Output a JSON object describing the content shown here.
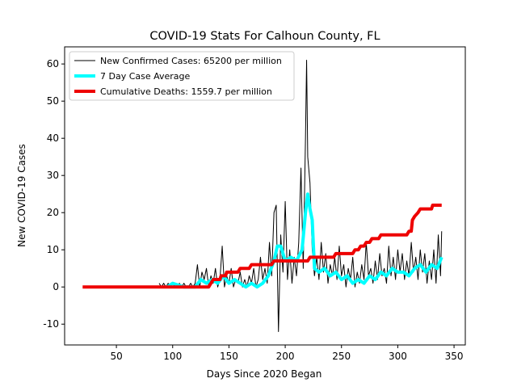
{
  "chart_data": {
    "type": "line",
    "title": "COVID-19 Stats For Calhoun County, FL",
    "x_label": "Days Since 2020 Began",
    "y_label": "New COVID-19 Cases",
    "xlim": [
      4,
      360
    ],
    "ylim": [
      -15.6,
      64.6
    ],
    "xticks": [
      50,
      100,
      150,
      200,
      250,
      300,
      350
    ],
    "yticks": [
      -10,
      0,
      10,
      20,
      30,
      40,
      50,
      60
    ],
    "legend": "upper left",
    "series": [
      {
        "name": "New Confirmed Cases: 65200 per million",
        "color": "#000000",
        "width": 1,
        "x": [
          88,
          90,
          92,
          94,
          96,
          98,
          100,
          102,
          104,
          106,
          108,
          110,
          112,
          114,
          116,
          118,
          120,
          122,
          124,
          126,
          128,
          130,
          132,
          134,
          136,
          138,
          140,
          142,
          144,
          146,
          148,
          150,
          152,
          154,
          156,
          158,
          160,
          162,
          164,
          166,
          168,
          170,
          172,
          174,
          176,
          178,
          180,
          182,
          184,
          186,
          188,
          190,
          192,
          194,
          196,
          198,
          200,
          202,
          204,
          206,
          208,
          210,
          212,
          214,
          216,
          218,
          219,
          220,
          222,
          224,
          226,
          228,
          230,
          232,
          234,
          236,
          238,
          240,
          242,
          244,
          246,
          248,
          250,
          252,
          254,
          256,
          258,
          260,
          262,
          264,
          266,
          268,
          270,
          272,
          274,
          276,
          278,
          280,
          282,
          284,
          286,
          288,
          290,
          292,
          294,
          296,
          298,
          300,
          302,
          304,
          306,
          308,
          310,
          312,
          314,
          316,
          318,
          320,
          322,
          324,
          326,
          328,
          330,
          332,
          334,
          336,
          338,
          339
        ],
        "values": [
          1,
          0,
          1,
          0,
          1,
          0,
          1,
          0,
          0,
          1,
          0,
          1,
          0,
          0,
          1,
          0,
          1,
          6,
          0,
          4,
          2,
          5,
          0,
          3,
          1,
          5,
          0,
          2,
          11,
          0,
          3,
          1,
          5,
          0,
          2,
          1,
          4,
          0,
          2,
          0,
          3,
          1,
          5,
          0,
          2,
          8,
          2,
          5,
          1,
          12,
          3,
          20,
          22,
          -12,
          14,
          4,
          23,
          2,
          10,
          1,
          8,
          3,
          12,
          32,
          5,
          40,
          61,
          35,
          28,
          10,
          3,
          8,
          2,
          12,
          4,
          9,
          1,
          6,
          3,
          8,
          2,
          11,
          3,
          6,
          0,
          5,
          2,
          8,
          0,
          4,
          1,
          6,
          2,
          12,
          3,
          5,
          1,
          7,
          2,
          9,
          3,
          5,
          1,
          11,
          3,
          8,
          2,
          10,
          4,
          9,
          2,
          7,
          3,
          12,
          4,
          8,
          2,
          10,
          4,
          9,
          1,
          7,
          2,
          10,
          1,
          14,
          3,
          15
        ]
      },
      {
        "name": "7 Day Case Average",
        "color": "#00ffff",
        "width": 4,
        "x": [
          95,
          100,
          110,
          120,
          125,
          130,
          135,
          140,
          145,
          150,
          155,
          160,
          165,
          170,
          175,
          180,
          185,
          190,
          193,
          196,
          200,
          205,
          210,
          215,
          218,
          220,
          222,
          224,
          226,
          230,
          235,
          240,
          245,
          250,
          255,
          260,
          265,
          270,
          275,
          280,
          285,
          290,
          295,
          300,
          305,
          310,
          315,
          320,
          325,
          330,
          335,
          339
        ],
        "values": [
          0,
          1,
          0,
          0,
          2,
          1,
          2,
          1,
          3,
          1,
          2,
          1,
          0,
          1,
          0,
          1,
          3,
          7,
          11,
          11,
          7,
          8,
          7,
          10,
          20,
          25,
          21,
          18,
          5,
          4,
          5,
          3,
          4,
          2,
          3,
          1,
          2,
          1,
          3,
          2,
          4,
          3,
          5,
          4,
          4,
          3,
          5,
          6,
          4,
          6,
          5,
          8
        ]
      },
      {
        "name": "Cumulative Deaths: 1559.7 per million",
        "color": "#ee0000",
        "width": 4,
        "x": [
          20,
          132,
          134,
          136,
          142,
          143,
          147,
          148,
          158,
          160,
          168,
          170,
          188,
          190,
          220,
          222,
          243,
          245,
          260,
          262,
          265,
          267,
          270,
          272,
          275,
          277,
          283,
          285,
          308,
          310,
          312,
          313,
          315,
          318,
          320,
          330,
          331,
          339
        ],
        "values": [
          0,
          0,
          1,
          2,
          2,
          3,
          3,
          4,
          4,
          5,
          5,
          6,
          6,
          7,
          7,
          8,
          8,
          9,
          9,
          10,
          10,
          11,
          11,
          12,
          12,
          13,
          13,
          14,
          14,
          15,
          15,
          18,
          19,
          20,
          21,
          21,
          22,
          22
        ]
      }
    ]
  }
}
